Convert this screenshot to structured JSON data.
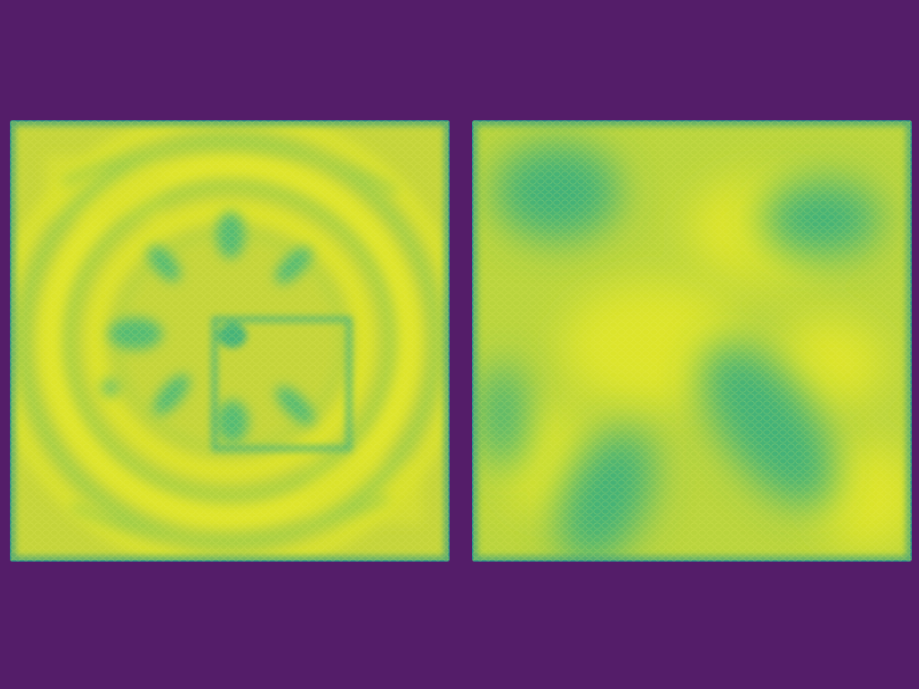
{
  "image": {
    "background_color": "#541d69",
    "colormap": [
      "#541d69",
      "#2a9a86",
      "#36b57a",
      "#8ccc42",
      "#c6d83a",
      "#dee52a"
    ],
    "panels": [
      {
        "name": "left-heatmap-panel",
        "pattern": "radial-ripples-with-star-and-square"
      },
      {
        "name": "right-heatmap-panel",
        "pattern": "smooth-blobs"
      }
    ]
  }
}
